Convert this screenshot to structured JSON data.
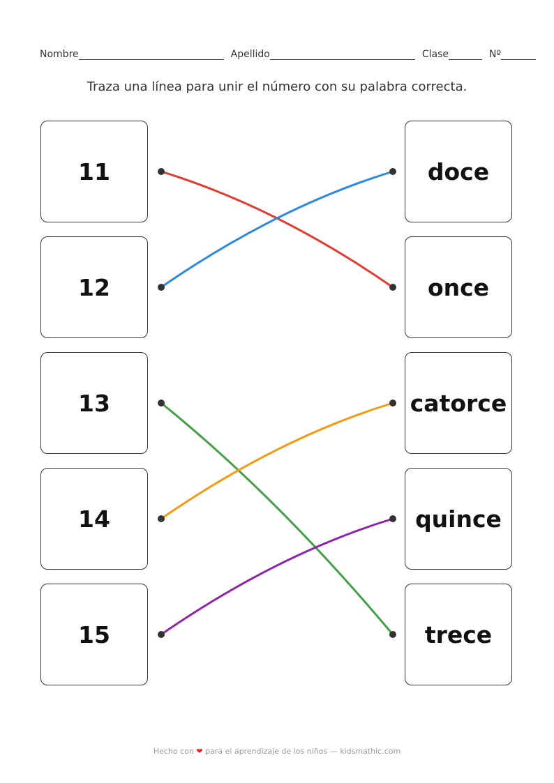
{
  "header": {
    "name_label": "Nombre",
    "surname_label": "Apellido",
    "class_label": "Clase",
    "number_label": "Nº"
  },
  "instruction": "Traza una línea para unir el número con su palabra correcta.",
  "left_items": [
    "11",
    "12",
    "13",
    "14",
    "15"
  ],
  "right_items": [
    "doce",
    "once",
    "catorce",
    "quince",
    "trece"
  ],
  "connections": [
    {
      "from": 0,
      "to": 1,
      "color": "#e03c31"
    },
    {
      "from": 1,
      "to": 0,
      "color": "#2b8ae0"
    },
    {
      "from": 2,
      "to": 4,
      "color": "#43a047"
    },
    {
      "from": 3,
      "to": 2,
      "color": "#f39a12"
    },
    {
      "from": 4,
      "to": 3,
      "color": "#8e24aa"
    }
  ],
  "footer": {
    "before": "Hecho con",
    "heart_icon": "heart-icon",
    "after": "para el aprendizaje de los niños — kidsmathic.com"
  }
}
